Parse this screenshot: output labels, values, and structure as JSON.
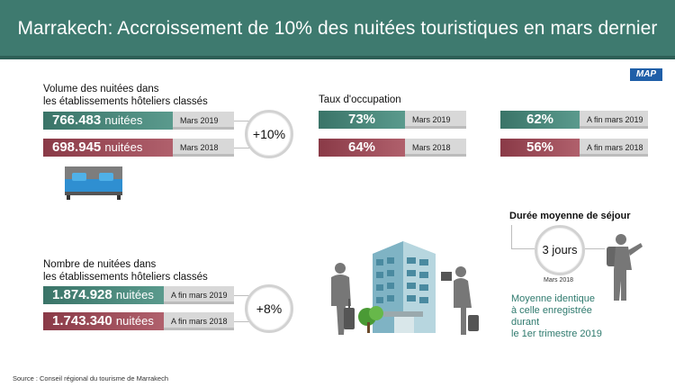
{
  "header": {
    "title": "Marrakech: Accroissement de 10% des nuitées touristiques en mars dernier"
  },
  "logo": {
    "text": "MAP"
  },
  "volume": {
    "title_line1": "Volume des nuitées dans",
    "title_line2": "les établissements hôteliers classés",
    "rows": [
      {
        "value": "766.483",
        "unit": "nuitées",
        "period": "Mars 2019"
      },
      {
        "value": "698.945",
        "unit": "nuitées",
        "period": "Mars 2018"
      }
    ],
    "change": "+10%"
  },
  "taux": {
    "title": "Taux d'occupation",
    "mars": [
      {
        "value": "73%",
        "period": "Mars 2019"
      },
      {
        "value": "64%",
        "period": "Mars 2018"
      }
    ],
    "fin_mars": [
      {
        "value": "62%",
        "period": "A fin mars 2019"
      },
      {
        "value": "56%",
        "period": "A fin mars 2018"
      }
    ]
  },
  "nombre": {
    "title_line1": "Nombre de nuitées dans",
    "title_line2": "les établissements hôteliers classés",
    "rows": [
      {
        "value": "1.874.928",
        "unit": "nuitées",
        "period": "A fin mars 2019"
      },
      {
        "value": "1.743.340",
        "unit": "nuitées",
        "period": "A fin mars 2018"
      }
    ],
    "change": "+8%"
  },
  "duree": {
    "title": "Durée moyenne de séjour",
    "value": "3 jours",
    "period": "Mars 2018",
    "note_line1": "Moyenne identique",
    "note_line2": "à celle enregistrée durant",
    "note_line3": "le 1er trimestre 2019"
  },
  "source": "Source : Conseil régional du tourisme de Marrakech",
  "colors": {
    "green": "#3e7a6f",
    "red": "#9b4a56",
    "grey": "#d8d8d8"
  }
}
